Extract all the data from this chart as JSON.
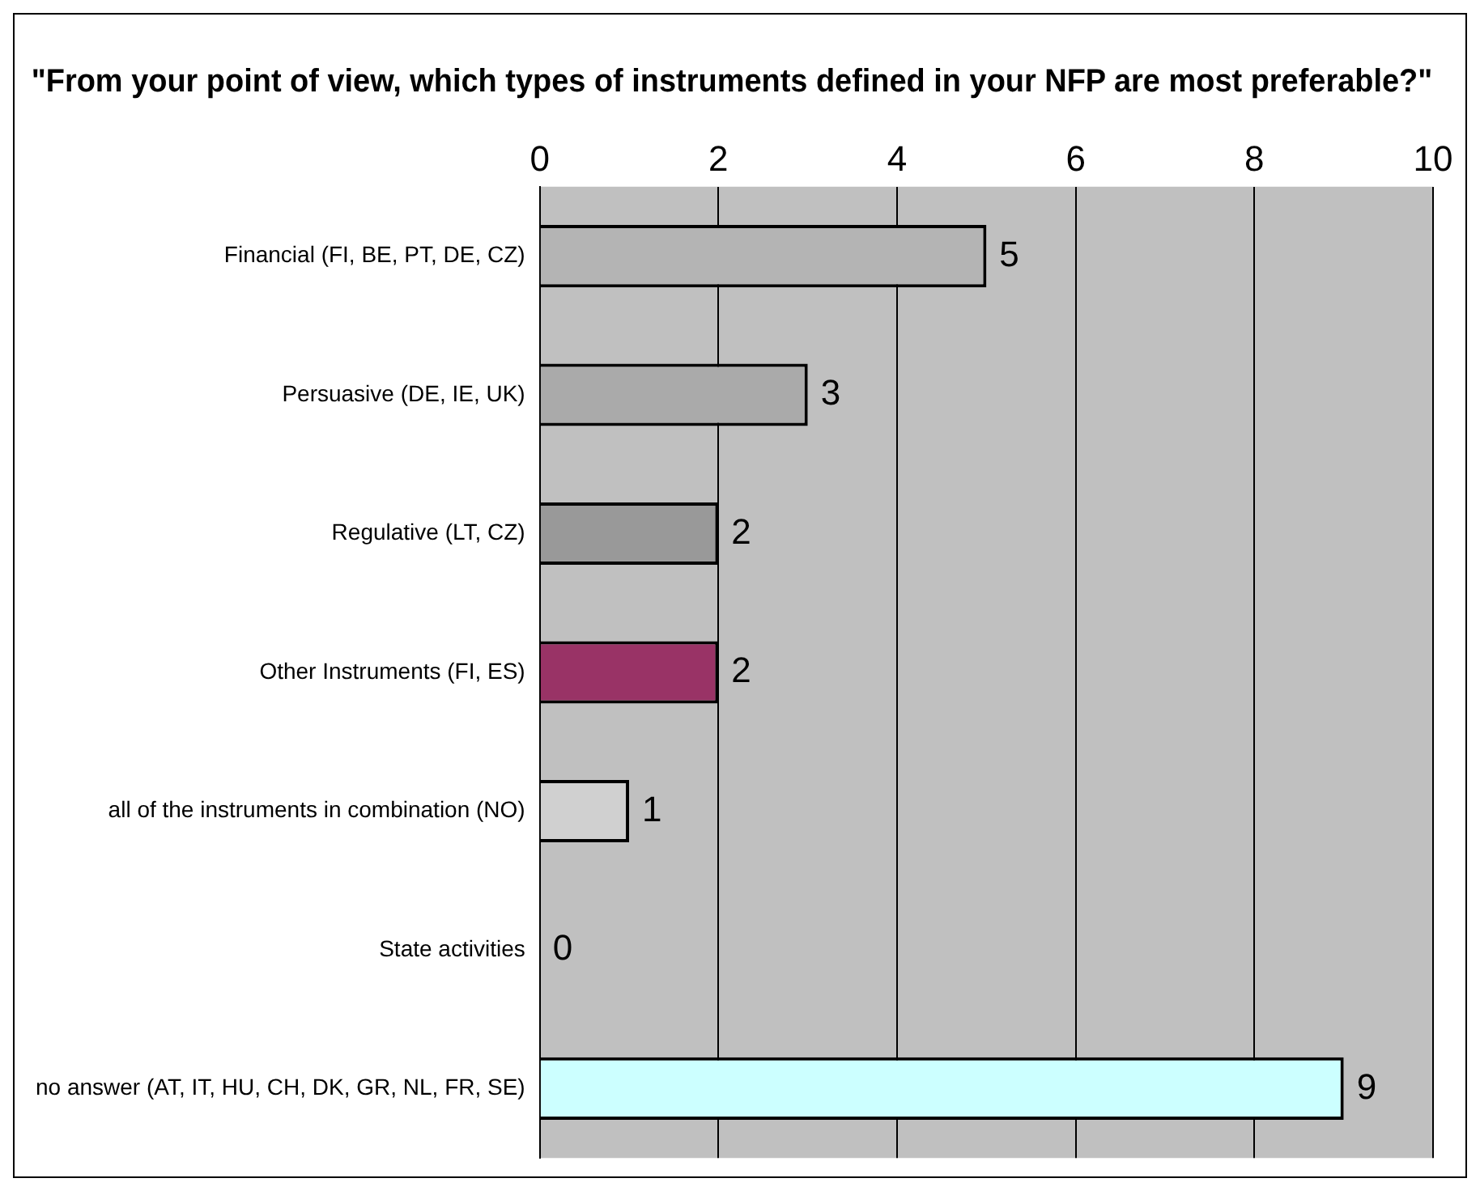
{
  "chart_data": {
    "type": "bar",
    "orientation": "horizontal",
    "title": "\"From your point of view, which types of instruments defined in your NFP are most preferable?\"",
    "categories": [
      "Financial (FI, BE, PT, DE, CZ)",
      "Persuasive (DE, IE, UK)",
      "Regulative (LT, CZ)",
      "Other Instruments (FI, ES)",
      "all of the instruments in combination (NO)",
      "State activities",
      "no answer (AT, IT, HU, CH, DK, GR, NL, FR, SE)"
    ],
    "values": [
      5,
      3,
      2,
      2,
      1,
      0,
      9
    ],
    "colors": [
      "#b4b4b4",
      "#aaaaaa",
      "#999999",
      "#993366",
      "#d0d0d0",
      "#c0c0c0",
      "#ccffff"
    ],
    "xlim": [
      0,
      10
    ],
    "xticks": [
      0,
      2,
      4,
      6,
      8,
      10
    ],
    "grid": "x",
    "data_labels": true
  }
}
